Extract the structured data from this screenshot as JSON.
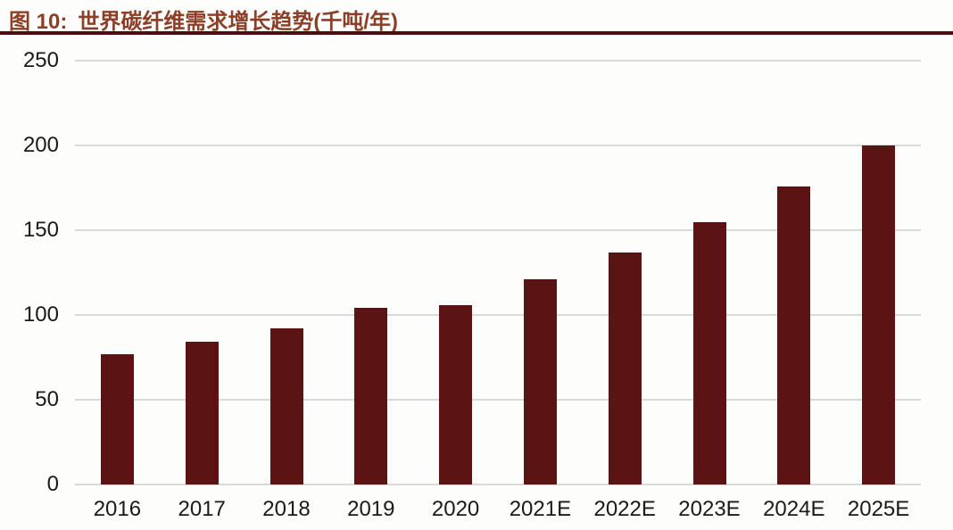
{
  "figure": {
    "title_prefix": "图 10:",
    "title_text": "世界碳纤维需求增长趋势(千吨/年)"
  },
  "colors": {
    "background": "#FDFDFB",
    "bar": "#5C1313",
    "title": "#8C3E27",
    "rule": "#4A0F11",
    "gridline": "#D9D9D9",
    "tick_label": "#1A1A1A"
  },
  "chart_data": {
    "type": "bar",
    "title": "世界碳纤维需求增长趋势(千吨/年)",
    "title_prefix": "图 10:",
    "categories": [
      "2016",
      "2017",
      "2018",
      "2019",
      "2020",
      "2021E",
      "2022E",
      "2023E",
      "2024E",
      "2025E"
    ],
    "values": [
      77,
      84,
      92,
      104,
      106,
      121,
      137,
      155,
      176,
      200
    ],
    "xlabel": "",
    "ylabel": "",
    "unit": "千吨/年",
    "ylim": [
      0,
      250
    ],
    "yticks": [
      0,
      50,
      100,
      150,
      200,
      250
    ],
    "grid": true,
    "grid_axis": "y",
    "legend": false,
    "bar_color": "#5C1313"
  }
}
